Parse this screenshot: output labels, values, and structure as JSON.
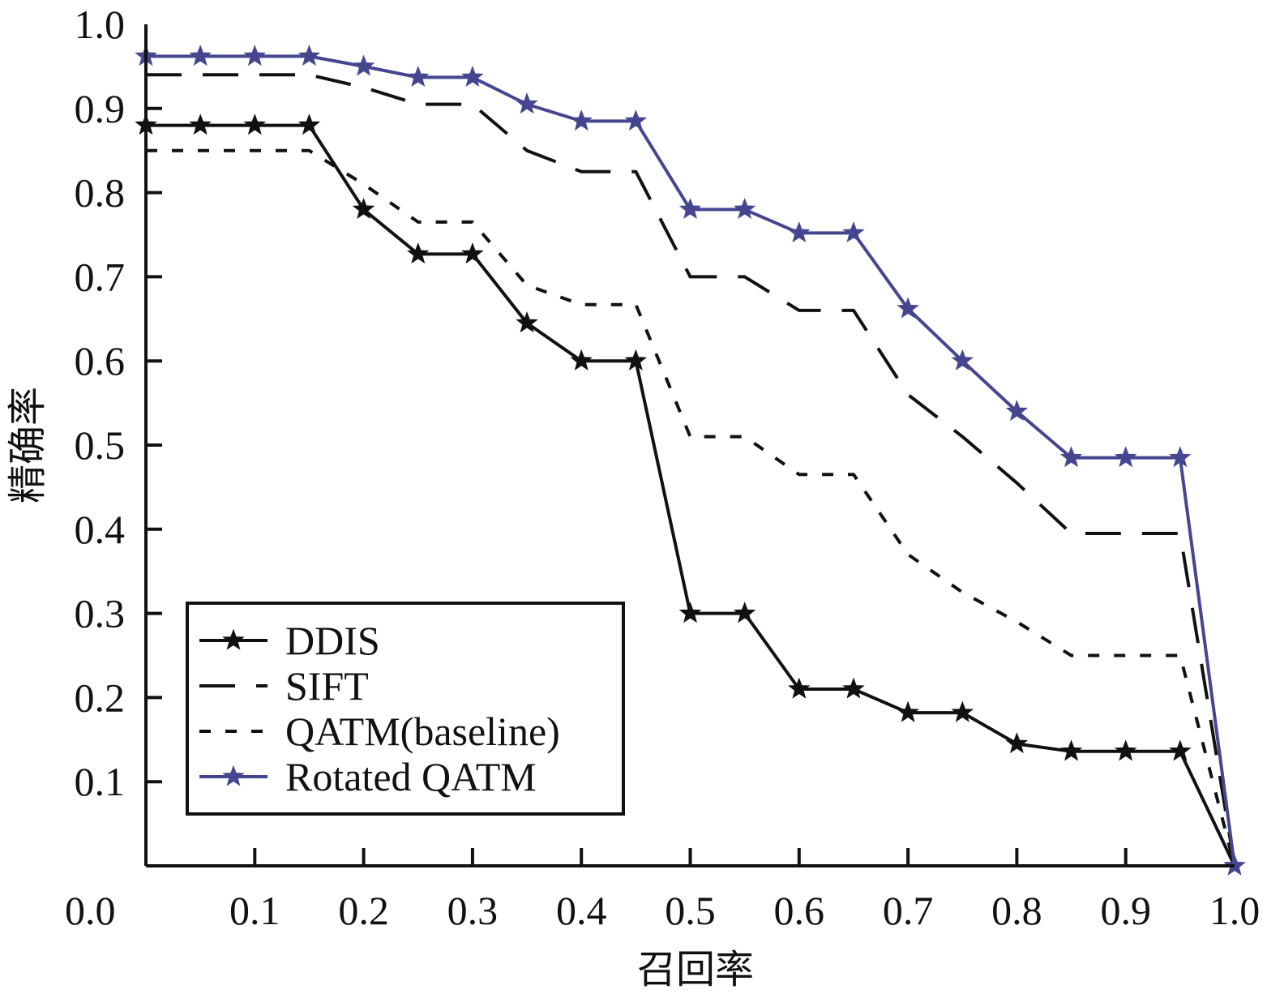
{
  "chart_data": {
    "type": "line",
    "xlabel": "召回率",
    "ylabel": "精确率",
    "xlim": [
      0,
      1
    ],
    "ylim": [
      0,
      1
    ],
    "xticks": [
      "0.0",
      "0.1",
      "0.2",
      "0.3",
      "0.4",
      "0.5",
      "0.6",
      "0.7",
      "0.8",
      "0.9",
      "1.0"
    ],
    "yticks": [
      "0.1",
      "0.2",
      "0.3",
      "0.4",
      "0.5",
      "0.6",
      "0.7",
      "0.8",
      "0.9",
      "1.0"
    ],
    "x": [
      0.0,
      0.05,
      0.1,
      0.15,
      0.2,
      0.25,
      0.3,
      0.35,
      0.4,
      0.45,
      0.5,
      0.55,
      0.6,
      0.65,
      0.7,
      0.75,
      0.8,
      0.85,
      0.9,
      0.95,
      1.0
    ],
    "legend_position": "bottom-left",
    "series": [
      {
        "name": "DDIS",
        "color": "#111111",
        "style": "solid",
        "marker": "star",
        "values": [
          0.88,
          0.88,
          0.88,
          0.88,
          0.78,
          0.727,
          0.727,
          0.645,
          0.6,
          0.6,
          0.3,
          0.3,
          0.21,
          0.21,
          0.182,
          0.182,
          0.145,
          0.136,
          0.136,
          0.136,
          0.0
        ]
      },
      {
        "name": "SIFT",
        "color": "#111111",
        "style": "longdash",
        "marker": "none",
        "values": [
          0.94,
          0.94,
          0.94,
          0.94,
          0.925,
          0.905,
          0.905,
          0.85,
          0.825,
          0.825,
          0.7,
          0.7,
          0.66,
          0.66,
          0.56,
          0.51,
          0.455,
          0.395,
          0.395,
          0.395,
          0.0
        ]
      },
      {
        "name": "QATM(baseline)",
        "color": "#111111",
        "style": "shortdash",
        "marker": "none",
        "values": [
          0.85,
          0.85,
          0.85,
          0.85,
          0.81,
          0.765,
          0.765,
          0.69,
          0.667,
          0.667,
          0.51,
          0.51,
          0.465,
          0.465,
          0.37,
          0.325,
          0.29,
          0.25,
          0.25,
          0.25,
          0.0
        ]
      },
      {
        "name": "Rotated QATM",
        "color": "#464690",
        "style": "solid",
        "marker": "star",
        "values": [
          0.962,
          0.962,
          0.962,
          0.962,
          0.95,
          0.937,
          0.937,
          0.905,
          0.885,
          0.885,
          0.78,
          0.78,
          0.752,
          0.752,
          0.662,
          0.6,
          0.54,
          0.485,
          0.485,
          0.485,
          0.0
        ]
      }
    ]
  }
}
